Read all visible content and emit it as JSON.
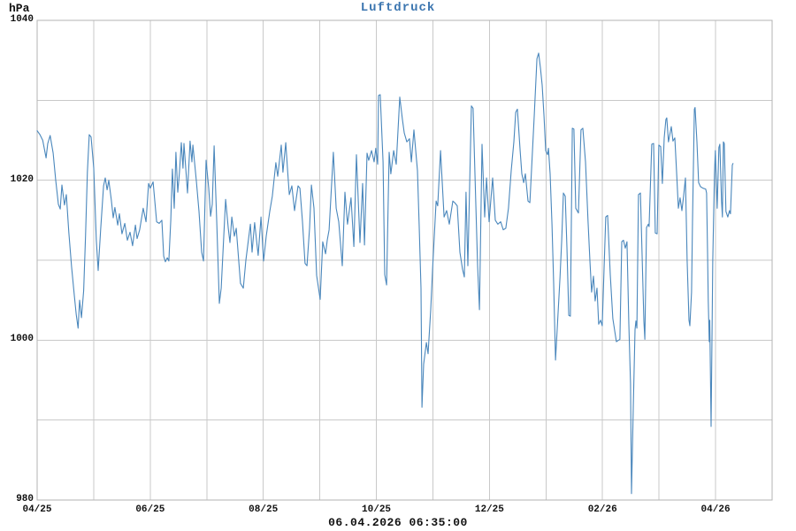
{
  "chart_data": {
    "type": "line",
    "title": "Luftdruck",
    "unit": "hPa",
    "timestamp": "06.04.2026 06:35:00",
    "colors": {
      "line": "#4a87bc",
      "title": "#3c76b0",
      "grid": "#c9c9c9",
      "border": "#b3b3b3",
      "text": "#111111"
    },
    "x_axis": {
      "months_total": 13,
      "days_total": 395,
      "ticks": [
        {
          "label": "04/25",
          "month": 0
        },
        {
          "label": "06/25",
          "month": 2
        },
        {
          "label": "08/25",
          "month": 4
        },
        {
          "label": "10/25",
          "month": 6
        },
        {
          "label": "12/25",
          "month": 8
        },
        {
          "label": "02/26",
          "month": 10
        },
        {
          "label": "04/26",
          "month": 12
        }
      ]
    },
    "y_axis": {
      "min": 980,
      "max": 1040,
      "grid_step": 10,
      "ticks": [
        {
          "label": "1040",
          "value": 1040
        },
        {
          "label": "1020",
          "value": 1020
        },
        {
          "label": "1000",
          "value": 1000
        },
        {
          "label": "980",
          "value": 980
        }
      ]
    },
    "points": [
      [
        0,
        1026.2
      ],
      [
        1.5,
        1025.7
      ],
      [
        3,
        1025.0
      ],
      [
        4.8,
        1022.8
      ],
      [
        5.7,
        1024.6
      ],
      [
        7,
        1025.6
      ],
      [
        8.6,
        1023.4
      ],
      [
        10,
        1020.0
      ],
      [
        11.4,
        1017.0
      ],
      [
        12.4,
        1016.4
      ],
      [
        13.3,
        1019.4
      ],
      [
        14.7,
        1016.9
      ],
      [
        15.7,
        1018.2
      ],
      [
        17,
        1013.5
      ],
      [
        18.5,
        1009.2
      ],
      [
        20,
        1005.5
      ],
      [
        21,
        1003.2
      ],
      [
        22,
        1001.5
      ],
      [
        22.8,
        1005.0
      ],
      [
        23.8,
        1002.8
      ],
      [
        25,
        1006.2
      ],
      [
        26,
        1013.0
      ],
      [
        27,
        1021.0
      ],
      [
        28,
        1025.7
      ],
      [
        29,
        1025.4
      ],
      [
        30.4,
        1021.5
      ],
      [
        31.8,
        1012.5
      ],
      [
        32.8,
        1008.7
      ],
      [
        34.2,
        1014.0
      ],
      [
        35.7,
        1019.3
      ],
      [
        36.6,
        1020.3
      ],
      [
        37.6,
        1018.8
      ],
      [
        38.5,
        1020.0
      ],
      [
        39.9,
        1017.5
      ],
      [
        40.9,
        1015.3
      ],
      [
        41.8,
        1016.6
      ],
      [
        43.3,
        1014.4
      ],
      [
        44.2,
        1015.8
      ],
      [
        45.6,
        1013.3
      ],
      [
        47.1,
        1014.6
      ],
      [
        48.5,
        1012.5
      ],
      [
        49.9,
        1013.5
      ],
      [
        51.3,
        1011.8
      ],
      [
        52.8,
        1014.4
      ],
      [
        53.7,
        1012.7
      ],
      [
        55.1,
        1013.8
      ],
      [
        57,
        1016.5
      ],
      [
        58.5,
        1014.8
      ],
      [
        59.9,
        1019.6
      ],
      [
        60.8,
        1019.0
      ],
      [
        62.3,
        1019.8
      ],
      [
        64.2,
        1014.8
      ],
      [
        65.6,
        1014.6
      ],
      [
        67,
        1015.0
      ],
      [
        68,
        1010.5
      ],
      [
        68.9,
        1009.8
      ],
      [
        69.9,
        1010.3
      ],
      [
        70.8,
        1009.9
      ],
      [
        71.8,
        1015.0
      ],
      [
        72.7,
        1021.4
      ],
      [
        73.7,
        1016.5
      ],
      [
        74.6,
        1023.5
      ],
      [
        75.6,
        1018.5
      ],
      [
        76.5,
        1021.0
      ],
      [
        77.5,
        1024.7
      ],
      [
        78.4,
        1021.5
      ],
      [
        78.9,
        1024.6
      ],
      [
        80.8,
        1018.4
      ],
      [
        82.2,
        1024.9
      ],
      [
        83.2,
        1022.3
      ],
      [
        83.7,
        1024.4
      ],
      [
        85.6,
        1019.8
      ],
      [
        87,
        1016.1
      ],
      [
        88.4,
        1011.0
      ],
      [
        89.4,
        1009.9
      ],
      [
        90.8,
        1022.5
      ],
      [
        92.2,
        1019.0
      ],
      [
        93.2,
        1015.5
      ],
      [
        94.1,
        1017.0
      ],
      [
        95.1,
        1024.3
      ],
      [
        96.5,
        1015.0
      ],
      [
        97.9,
        1004.6
      ],
      [
        98.9,
        1006.5
      ],
      [
        100.3,
        1013.0
      ],
      [
        101.3,
        1017.6
      ],
      [
        102.7,
        1014.0
      ],
      [
        103.6,
        1012.2
      ],
      [
        104.6,
        1015.4
      ],
      [
        106,
        1013.0
      ],
      [
        107,
        1014.0
      ],
      [
        109.3,
        1007.1
      ],
      [
        110.8,
        1006.5
      ],
      [
        112.2,
        1010.0
      ],
      [
        114.6,
        1014.5
      ],
      [
        115.5,
        1011.0
      ],
      [
        116.9,
        1014.7
      ],
      [
        118.8,
        1010.6
      ],
      [
        120.3,
        1015.4
      ],
      [
        121.7,
        1009.9
      ],
      [
        123.1,
        1013.0
      ],
      [
        125,
        1016.1
      ],
      [
        126.4,
        1018.0
      ],
      [
        128.3,
        1022.2
      ],
      [
        129.3,
        1020.5
      ],
      [
        131.2,
        1024.4
      ],
      [
        132.1,
        1021.0
      ],
      [
        133.6,
        1024.7
      ],
      [
        134.5,
        1021.5
      ],
      [
        135.5,
        1018.2
      ],
      [
        136.9,
        1019.3
      ],
      [
        138.3,
        1016.2
      ],
      [
        140.2,
        1019.3
      ],
      [
        141.2,
        1019.0
      ],
      [
        142.6,
        1014.8
      ],
      [
        144,
        1009.6
      ],
      [
        145,
        1009.3
      ],
      [
        146.4,
        1014.0
      ],
      [
        147.4,
        1019.4
      ],
      [
        148.8,
        1016.5
      ],
      [
        150.2,
        1008.1
      ],
      [
        152.1,
        1005.1
      ],
      [
        153.5,
        1012.3
      ],
      [
        155,
        1010.8
      ],
      [
        155.9,
        1012.5
      ],
      [
        156.9,
        1013.8
      ],
      [
        159.2,
        1023.5
      ],
      [
        160.7,
        1016.5
      ],
      [
        162.1,
        1014.8
      ],
      [
        164,
        1009.3
      ],
      [
        165.4,
        1018.5
      ],
      [
        166.8,
        1014.5
      ],
      [
        168.7,
        1017.8
      ],
      [
        170.2,
        1011.7
      ],
      [
        171.6,
        1023.2
      ],
      [
        173.5,
        1012.2
      ],
      [
        174.9,
        1019.6
      ],
      [
        175.9,
        1011.9
      ],
      [
        177.3,
        1023.4
      ],
      [
        178.2,
        1022.5
      ],
      [
        179.7,
        1023.7
      ],
      [
        181.1,
        1022.3
      ],
      [
        182,
        1024.0
      ],
      [
        183,
        1022.0
      ],
      [
        183.5,
        1030.6
      ],
      [
        184.4,
        1030.7
      ],
      [
        185.9,
        1022.3
      ],
      [
        186.8,
        1008.2
      ],
      [
        187.8,
        1006.9
      ],
      [
        189.2,
        1023.5
      ],
      [
        190.1,
        1020.8
      ],
      [
        191.6,
        1023.7
      ],
      [
        193,
        1022.0
      ],
      [
        194.9,
        1030.4
      ],
      [
        196.3,
        1027.6
      ],
      [
        197.3,
        1025.9
      ],
      [
        198.7,
        1024.8
      ],
      [
        200.1,
        1025.2
      ],
      [
        201.1,
        1022.3
      ],
      [
        202.5,
        1026.3
      ],
      [
        204.4,
        1021.2
      ],
      [
        205.3,
        1014.5
      ],
      [
        206.3,
        1006.5
      ],
      [
        206.8,
        991.6
      ],
      [
        207.7,
        997.0
      ],
      [
        209.2,
        999.7
      ],
      [
        210.1,
        998.3
      ],
      [
        211.5,
        1003.8
      ],
      [
        212.5,
        1008.9
      ],
      [
        214.4,
        1017.4
      ],
      [
        215.3,
        1016.8
      ],
      [
        216.8,
        1023.7
      ],
      [
        218.7,
        1015.4
      ],
      [
        220.1,
        1016.2
      ],
      [
        221.5,
        1014.5
      ],
      [
        223.4,
        1017.4
      ],
      [
        224.4,
        1017.2
      ],
      [
        225.8,
        1016.8
      ],
      [
        227.2,
        1011.0
      ],
      [
        228.6,
        1008.9
      ],
      [
        229.6,
        1007.9
      ],
      [
        230.5,
        1018.5
      ],
      [
        231.5,
        1009.3
      ],
      [
        233.4,
        1029.3
      ],
      [
        234.3,
        1029.0
      ],
      [
        235.3,
        1020.8
      ],
      [
        236.7,
        1009.3
      ],
      [
        237.7,
        1003.8
      ],
      [
        239.1,
        1024.5
      ],
      [
        240.5,
        1015.4
      ],
      [
        241.5,
        1020.3
      ],
      [
        242.9,
        1014.8
      ],
      [
        244.8,
        1020.3
      ],
      [
        246.2,
        1015.0
      ],
      [
        247.6,
        1014.5
      ],
      [
        249.1,
        1014.8
      ],
      [
        250.5,
        1013.8
      ],
      [
        251.9,
        1014.0
      ],
      [
        253.3,
        1016.5
      ],
      [
        254.8,
        1021.2
      ],
      [
        256.2,
        1024.8
      ],
      [
        257.2,
        1028.5
      ],
      [
        258.1,
        1028.9
      ],
      [
        259.6,
        1023.7
      ],
      [
        260.5,
        1020.8
      ],
      [
        261.5,
        1019.7
      ],
      [
        262.4,
        1020.8
      ],
      [
        263.8,
        1017.4
      ],
      [
        264.8,
        1017.2
      ],
      [
        267.2,
        1028.2
      ],
      [
        268.6,
        1035.2
      ],
      [
        269.5,
        1035.9
      ],
      [
        270.5,
        1034.0
      ],
      [
        271.4,
        1031.9
      ],
      [
        272.4,
        1028.0
      ],
      [
        273.3,
        1023.7
      ],
      [
        274.3,
        1023.2
      ],
      [
        274.8,
        1024.0
      ],
      [
        275.7,
        1020.8
      ],
      [
        276.7,
        1014.5
      ],
      [
        277.6,
        1007.1
      ],
      [
        278.6,
        997.5
      ],
      [
        281,
        1007.9
      ],
      [
        281.9,
        1012.5
      ],
      [
        282.8,
        1018.4
      ],
      [
        283.8,
        1018.0
      ],
      [
        284.7,
        1011.6
      ],
      [
        285.7,
        1003.1
      ],
      [
        286.6,
        1003.0
      ],
      [
        287.6,
        1026.5
      ],
      [
        288.5,
        1026.4
      ],
      [
        289.5,
        1016.5
      ],
      [
        290.9,
        1015.9
      ],
      [
        292.3,
        1026.3
      ],
      [
        293.3,
        1026.5
      ],
      [
        294.7,
        1022.3
      ],
      [
        296.1,
        1014.8
      ],
      [
        297.1,
        1009.9
      ],
      [
        298,
        1006.0
      ],
      [
        299,
        1008.0
      ],
      [
        299.9,
        1004.9
      ],
      [
        300.9,
        1006.5
      ],
      [
        301.8,
        1002.0
      ],
      [
        302.8,
        1002.5
      ],
      [
        303.7,
        1001.8
      ],
      [
        305.6,
        1015.4
      ],
      [
        306.6,
        1015.6
      ],
      [
        308,
        1008.2
      ],
      [
        309.4,
        1002.7
      ],
      [
        311.3,
        999.8
      ],
      [
        313.2,
        1000.1
      ],
      [
        314.2,
        1012.3
      ],
      [
        315.1,
        1012.5
      ],
      [
        316.1,
        1011.5
      ],
      [
        317,
        1012.3
      ],
      [
        318,
        1002.0
      ],
      [
        318.9,
        994.6
      ],
      [
        319.4,
        980.8
      ],
      [
        320.4,
        992.0
      ],
      [
        321.3,
        1001.3
      ],
      [
        321.8,
        1002.4
      ],
      [
        322.3,
        1001.5
      ],
      [
        323.2,
        1018.2
      ],
      [
        324.2,
        1018.4
      ],
      [
        326.1,
        1002.4
      ],
      [
        326.6,
        1000.1
      ],
      [
        327.5,
        1014.1
      ],
      [
        328.5,
        1014.5
      ],
      [
        328.9,
        1014.2
      ],
      [
        330.3,
        1024.5
      ],
      [
        331.3,
        1024.6
      ],
      [
        332.2,
        1013.4
      ],
      [
        333.2,
        1013.3
      ],
      [
        334.1,
        1024.4
      ],
      [
        335.1,
        1024.2
      ],
      [
        336,
        1019.6
      ],
      [
        337,
        1025.3
      ],
      [
        337.9,
        1027.6
      ],
      [
        338.4,
        1027.8
      ],
      [
        339.3,
        1024.8
      ],
      [
        340.8,
        1026.7
      ],
      [
        341.7,
        1024.9
      ],
      [
        342.7,
        1025.3
      ],
      [
        343.6,
        1021.2
      ],
      [
        344.6,
        1016.5
      ],
      [
        345.5,
        1017.8
      ],
      [
        346.5,
        1016.2
      ],
      [
        347.4,
        1018.0
      ],
      [
        348.4,
        1020.3
      ],
      [
        349.3,
        1010.0
      ],
      [
        350.3,
        1002.5
      ],
      [
        350.8,
        1001.8
      ],
      [
        351.7,
        1006.0
      ],
      [
        352.2,
        1015.0
      ],
      [
        353.2,
        1028.9
      ],
      [
        353.6,
        1029.1
      ],
      [
        354.6,
        1024.8
      ],
      [
        355.5,
        1019.7
      ],
      [
        356.5,
        1019.2
      ],
      [
        357.9,
        1019.0
      ],
      [
        359.3,
        1018.9
      ],
      [
        359.8,
        1018.4
      ],
      [
        360.3,
        1011.0
      ],
      [
        360.7,
        1004.9
      ],
      [
        361.2,
        999.8
      ],
      [
        361.5,
        1002.5
      ],
      [
        362.2,
        989.2
      ],
      [
        363.1,
        1010.0
      ],
      [
        364,
        1020.8
      ],
      [
        364.5,
        1023.7
      ],
      [
        365.5,
        1016.5
      ],
      [
        366.4,
        1024.1
      ],
      [
        366.9,
        1024.5
      ],
      [
        367.8,
        1017.4
      ],
      [
        368.3,
        1015.4
      ],
      [
        368.8,
        1024.8
      ],
      [
        369.3,
        1024.6
      ],
      [
        370.2,
        1016.1
      ],
      [
        371.2,
        1015.4
      ],
      [
        372.1,
        1016.2
      ],
      [
        372.6,
        1015.8
      ],
      [
        373.6,
        1021.9
      ],
      [
        374,
        1022.1
      ]
    ]
  }
}
